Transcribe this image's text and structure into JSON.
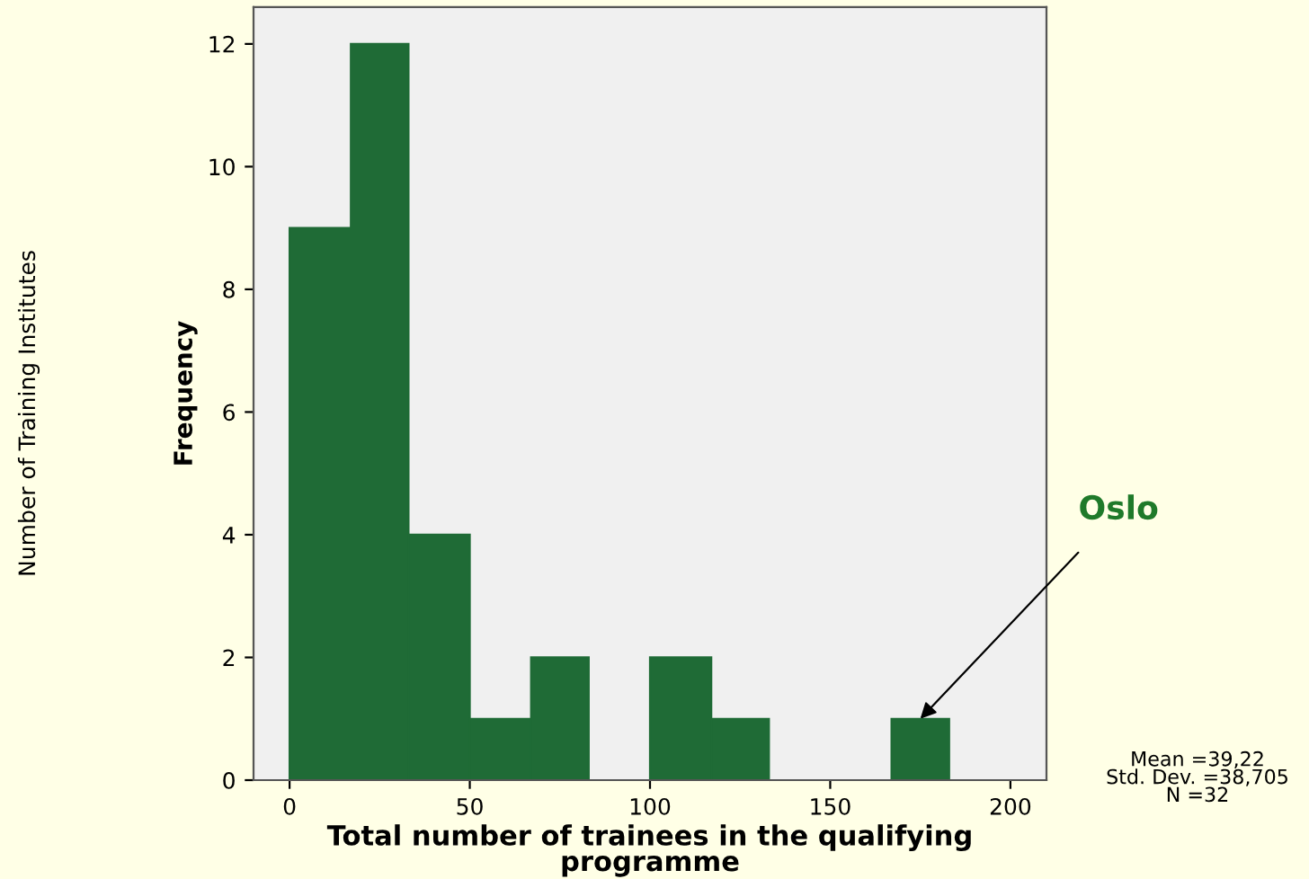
{
  "chart_data": {
    "type": "histogram",
    "xlabel": "Total number of trainees in the qualifying\nprogramme",
    "ylabel": "Frequency",
    "bins": [
      0,
      17,
      33,
      50,
      67,
      83,
      100,
      117,
      133,
      167,
      183
    ],
    "values": [
      9,
      12,
      4,
      1,
      2,
      0,
      2,
      1,
      0,
      1
    ],
    "color": "#1f6b36",
    "xlim": [
      -10,
      210
    ],
    "xticks": [
      0,
      50,
      100,
      150,
      200
    ],
    "ylim": [
      0,
      12.6
    ],
    "yticks": [
      0,
      2,
      4,
      6,
      8,
      10,
      12
    ],
    "grid": false,
    "annotations": [
      {
        "text": "Oslo",
        "x": 175,
        "y": 1
      },
      "Mean =39,22\nStd. Dev. =38,705\nN =32",
      "Number of Training Institutes"
    ]
  }
}
